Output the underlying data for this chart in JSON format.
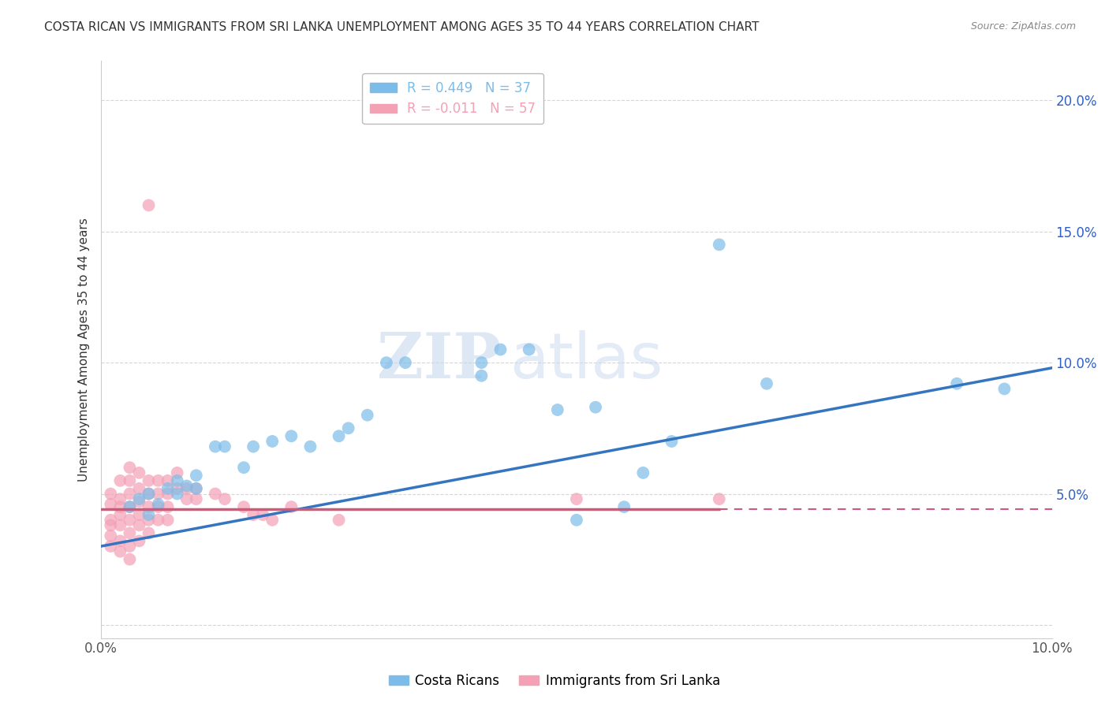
{
  "title": "COSTA RICAN VS IMMIGRANTS FROM SRI LANKA UNEMPLOYMENT AMONG AGES 35 TO 44 YEARS CORRELATION CHART",
  "source": "Source: ZipAtlas.com",
  "ylabel": "Unemployment Among Ages 35 to 44 years",
  "xlim": [
    0.0,
    0.1
  ],
  "ylim": [
    -0.005,
    0.215
  ],
  "xticks": [
    0.0,
    0.02,
    0.04,
    0.06,
    0.08,
    0.1
  ],
  "yticks": [
    0.0,
    0.05,
    0.1,
    0.15,
    0.2
  ],
  "legend_entries": [
    {
      "label": "R = 0.449   N = 37",
      "color": "#7bbce8"
    },
    {
      "label": "R = -0.011   N = 57",
      "color": "#f4a0b5"
    }
  ],
  "blue_scatter": [
    [
      0.003,
      0.045
    ],
    [
      0.004,
      0.048
    ],
    [
      0.005,
      0.042
    ],
    [
      0.005,
      0.05
    ],
    [
      0.006,
      0.046
    ],
    [
      0.007,
      0.052
    ],
    [
      0.008,
      0.05
    ],
    [
      0.008,
      0.055
    ],
    [
      0.009,
      0.053
    ],
    [
      0.01,
      0.057
    ],
    [
      0.01,
      0.052
    ],
    [
      0.012,
      0.068
    ],
    [
      0.013,
      0.068
    ],
    [
      0.015,
      0.06
    ],
    [
      0.016,
      0.068
    ],
    [
      0.018,
      0.07
    ],
    [
      0.02,
      0.072
    ],
    [
      0.022,
      0.068
    ],
    [
      0.025,
      0.072
    ],
    [
      0.026,
      0.075
    ],
    [
      0.028,
      0.08
    ],
    [
      0.03,
      0.1
    ],
    [
      0.032,
      0.1
    ],
    [
      0.04,
      0.1
    ],
    [
      0.04,
      0.095
    ],
    [
      0.042,
      0.105
    ],
    [
      0.045,
      0.105
    ],
    [
      0.048,
      0.082
    ],
    [
      0.05,
      0.04
    ],
    [
      0.052,
      0.083
    ],
    [
      0.055,
      0.045
    ],
    [
      0.057,
      0.058
    ],
    [
      0.06,
      0.07
    ],
    [
      0.065,
      0.145
    ],
    [
      0.07,
      0.092
    ],
    [
      0.09,
      0.092
    ],
    [
      0.095,
      0.09
    ]
  ],
  "pink_scatter": [
    [
      0.001,
      0.05
    ],
    [
      0.001,
      0.046
    ],
    [
      0.001,
      0.04
    ],
    [
      0.001,
      0.038
    ],
    [
      0.001,
      0.034
    ],
    [
      0.001,
      0.03
    ],
    [
      0.002,
      0.055
    ],
    [
      0.002,
      0.048
    ],
    [
      0.002,
      0.045
    ],
    [
      0.002,
      0.042
    ],
    [
      0.002,
      0.038
    ],
    [
      0.002,
      0.032
    ],
    [
      0.002,
      0.028
    ],
    [
      0.003,
      0.06
    ],
    [
      0.003,
      0.055
    ],
    [
      0.003,
      0.05
    ],
    [
      0.003,
      0.045
    ],
    [
      0.003,
      0.04
    ],
    [
      0.003,
      0.035
    ],
    [
      0.003,
      0.03
    ],
    [
      0.003,
      0.025
    ],
    [
      0.004,
      0.058
    ],
    [
      0.004,
      0.052
    ],
    [
      0.004,
      0.047
    ],
    [
      0.004,
      0.042
    ],
    [
      0.004,
      0.038
    ],
    [
      0.004,
      0.032
    ],
    [
      0.005,
      0.16
    ],
    [
      0.005,
      0.055
    ],
    [
      0.005,
      0.05
    ],
    [
      0.005,
      0.045
    ],
    [
      0.005,
      0.04
    ],
    [
      0.005,
      0.035
    ],
    [
      0.006,
      0.055
    ],
    [
      0.006,
      0.05
    ],
    [
      0.006,
      0.045
    ],
    [
      0.006,
      0.04
    ],
    [
      0.007,
      0.055
    ],
    [
      0.007,
      0.05
    ],
    [
      0.007,
      0.045
    ],
    [
      0.007,
      0.04
    ],
    [
      0.008,
      0.058
    ],
    [
      0.008,
      0.052
    ],
    [
      0.009,
      0.052
    ],
    [
      0.009,
      0.048
    ],
    [
      0.01,
      0.052
    ],
    [
      0.01,
      0.048
    ],
    [
      0.012,
      0.05
    ],
    [
      0.013,
      0.048
    ],
    [
      0.015,
      0.045
    ],
    [
      0.016,
      0.042
    ],
    [
      0.017,
      0.042
    ],
    [
      0.018,
      0.04
    ],
    [
      0.02,
      0.045
    ],
    [
      0.025,
      0.04
    ],
    [
      0.05,
      0.048
    ],
    [
      0.065,
      0.048
    ]
  ],
  "blue_color": "#7bbce8",
  "pink_color": "#f4a0b5",
  "blue_line_color": "#3575c0",
  "pink_line_color": "#d05878",
  "watermark_zip": "ZIP",
  "watermark_atlas": "atlas",
  "background_color": "#ffffff",
  "grid_color": "#cccccc"
}
